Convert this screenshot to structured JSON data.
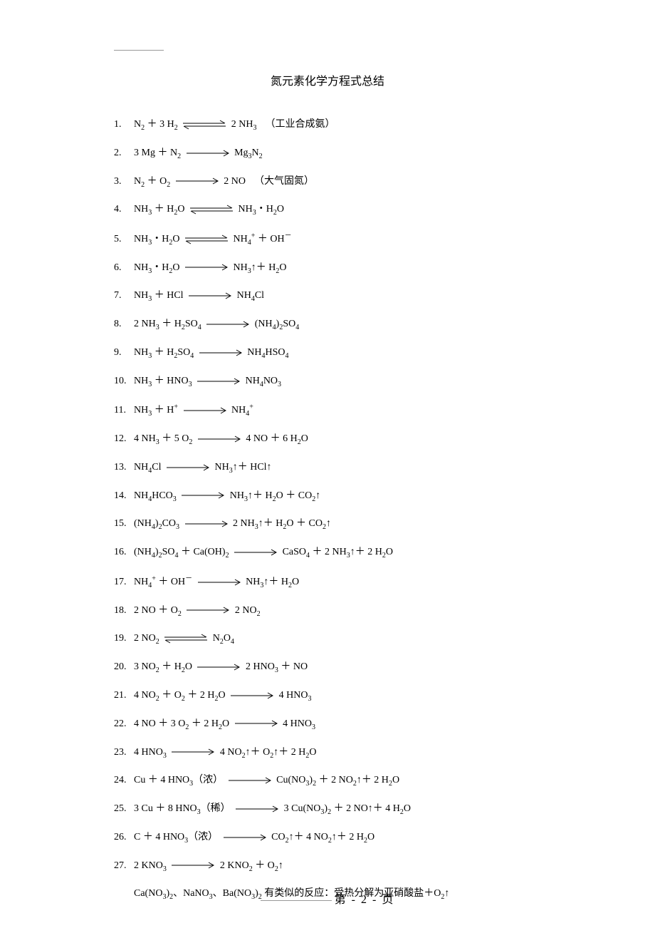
{
  "title": "氮元素化学方程式总结",
  "arrows": {
    "forward_width": 60,
    "equilibrium_width": 60,
    "stroke": "#000000",
    "stroke_width": 1
  },
  "equations": [
    {
      "num": "1.",
      "lhs": "N<sub>2</sub> ＋ 3 H<sub>2</sub>",
      "arrow": "equilibrium",
      "rhs": "2 NH<sub>3</sub>",
      "comment": "（工业合成氨）"
    },
    {
      "num": "2.",
      "lhs": "3 Mg ＋ N<sub>2</sub>",
      "arrow": "forward",
      "rhs": "Mg<sub>3</sub>N<sub>2</sub>",
      "comment": ""
    },
    {
      "num": "3.",
      "lhs": "N<sub>2</sub> ＋ O<sub>2</sub>",
      "arrow": "forward",
      "rhs": "2 NO",
      "comment": "（大气固氮）"
    },
    {
      "num": "4.",
      "lhs": "NH<sub>3</sub> ＋ H<sub>2</sub>O",
      "arrow": "equilibrium",
      "rhs": "NH<sub>3</sub>・H<sub>2</sub>O",
      "comment": ""
    },
    {
      "num": "5.",
      "lhs": "NH<sub>3</sub>・H<sub>2</sub>O",
      "arrow": "equilibrium",
      "rhs": "NH<sub>4</sub><sup>+</sup> ＋ OH<sup>－</sup>",
      "comment": ""
    },
    {
      "num": "6.",
      "lhs": "NH<sub>3</sub>・H<sub>2</sub>O",
      "arrow": "forward",
      "rhs": " NH<sub>3</sub>↑＋ H<sub>2</sub>O",
      "comment": ""
    },
    {
      "num": "7.",
      "lhs": "NH<sub>3</sub> ＋ HCl",
      "arrow": "forward",
      "rhs": "NH<sub>4</sub>Cl",
      "comment": ""
    },
    {
      "num": "8.",
      "lhs": "2 NH<sub>3</sub> ＋ H<sub>2</sub>SO<sub>4</sub>",
      "arrow": "forward",
      "rhs": "(NH<sub>4</sub>)<sub>2</sub>SO<sub>4</sub>",
      "comment": ""
    },
    {
      "num": "9.",
      "lhs": "NH<sub>3</sub> ＋ H<sub>2</sub>SO<sub>4</sub>",
      "arrow": "forward",
      "rhs": "NH<sub>4</sub>HSO<sub>4</sub>",
      "comment": ""
    },
    {
      "num": "10.",
      "lhs": "NH<sub>3</sub> ＋ HNO<sub>3</sub>",
      "arrow": "forward",
      "rhs": "NH<sub>4</sub>NO<sub>3</sub>",
      "comment": ""
    },
    {
      "num": "11.",
      "lhs": "NH<sub>3</sub> ＋ H<sup>+</sup>",
      "arrow": "forward",
      "rhs": "NH<sub>4</sub><sup>+</sup>",
      "comment": ""
    },
    {
      "num": "12.",
      "lhs": "4 NH<sub>3</sub> ＋ 5 O<sub>2</sub> ",
      "arrow": "forward",
      "rhs": "4 NO ＋ 6 H<sub>2</sub>O",
      "comment": ""
    },
    {
      "num": "13.",
      "lhs": "NH<sub>4</sub>Cl",
      "arrow": "forward",
      "rhs": " NH<sub>3</sub>↑＋ HCl↑",
      "comment": ""
    },
    {
      "num": "14.",
      "lhs": "NH<sub>4</sub>HCO<sub>3</sub>",
      "arrow": "forward",
      "rhs": "NH<sub>3</sub>↑＋ H<sub>2</sub>O ＋ CO<sub>2</sub>↑",
      "comment": ""
    },
    {
      "num": "15.",
      "lhs": "(NH<sub>4</sub>)<sub>2</sub>CO<sub>3</sub>",
      "arrow": "forward",
      "rhs": "2 NH<sub>3</sub>↑＋ H<sub>2</sub>O ＋ CO<sub>2</sub>↑",
      "comment": ""
    },
    {
      "num": "16.",
      "lhs": "(NH<sub>4</sub>)<sub>2</sub>SO<sub>4</sub> ＋ Ca(OH)<sub>2</sub>",
      "arrow": "forward",
      "rhs": "CaSO<sub>4</sub> ＋ 2 NH<sub>3</sub>↑＋ 2 H<sub>2</sub>O",
      "comment": ""
    },
    {
      "num": "17.",
      "lhs": "NH<sub>4</sub><sup>+</sup> ＋ OH<sup>－</sup>",
      "arrow": "forward",
      "rhs": "NH<sub>3</sub>↑＋ H<sub>2</sub>O",
      "comment": ""
    },
    {
      "num": "18.",
      "lhs": "2 NO ＋ O<sub>2</sub>",
      "arrow": "forward",
      "rhs": "2 NO<sub>2</sub>",
      "comment": ""
    },
    {
      "num": "19.",
      "lhs": "2 NO<sub>2</sub>",
      "arrow": "equilibrium",
      "rhs": "N<sub>2</sub>O<sub>4</sub>",
      "comment": ""
    },
    {
      "num": "20.",
      "lhs": "3 NO<sub>2</sub> ＋ H<sub>2</sub>O",
      "arrow": "forward",
      "rhs": "2 HNO<sub>3</sub> ＋ NO",
      "comment": ""
    },
    {
      "num": "21.",
      "lhs": "4 NO<sub>2</sub> ＋ O<sub>2</sub> ＋ 2 H<sub>2</sub>O",
      "arrow": "forward",
      "rhs": "4 HNO<sub>3</sub>",
      "comment": ""
    },
    {
      "num": "22.",
      "lhs": "4 NO ＋ 3 O<sub>2</sub> ＋ 2 H<sub>2</sub>O",
      "arrow": "forward",
      "rhs": "4 HNO<sub>3</sub>",
      "comment": ""
    },
    {
      "num": "23.",
      "lhs": "4 HNO<sub>3</sub>",
      "arrow": "forward",
      "rhs": "4 NO<sub>2</sub>↑＋ O<sub>2</sub>↑＋ 2 H<sub>2</sub>O",
      "comment": ""
    },
    {
      "num": "24.",
      "lhs": "Cu ＋ 4 HNO<sub>3</sub>（浓）",
      "arrow": "forward",
      "rhs": "Cu(NO<sub>3</sub>)<sub>2</sub> ＋ 2 NO<sub>2</sub>↑＋ 2 H<sub>2</sub>O",
      "comment": ""
    },
    {
      "num": "25.",
      "lhs": "3 Cu ＋ 8 HNO<sub>3</sub>（稀）",
      "arrow": "forward",
      "rhs": "3 Cu(NO<sub>3</sub>)<sub>2</sub> ＋ 2 NO↑＋ 4 H<sub>2</sub>O",
      "comment": ""
    },
    {
      "num": "26.",
      "lhs": "C ＋ 4 HNO<sub>3</sub>（浓）",
      "arrow": "forward",
      "rhs": "CO<sub>2</sub>↑＋ 4 NO<sub>2</sub>↑＋ 2 H<sub>2</sub>O",
      "comment": ""
    },
    {
      "num": "27.",
      "lhs": "2 KNO<sub>3</sub>",
      "arrow": "forward",
      "rhs": "2 KNO<sub>2</sub> ＋ O<sub>2</sub>↑",
      "comment": ""
    }
  ],
  "note": "Ca(NO<sub>3</sub>)<sub>2</sub>、NaNO<sub>3</sub>、Ba(NO<sub>3</sub>)<sub>2</sub> 有类似的反应：受热分解为亚硝酸盐＋O<sub>2</sub>↑",
  "footer": {
    "prefix": "第",
    "page": "- 2 -",
    "suffix": "页"
  }
}
